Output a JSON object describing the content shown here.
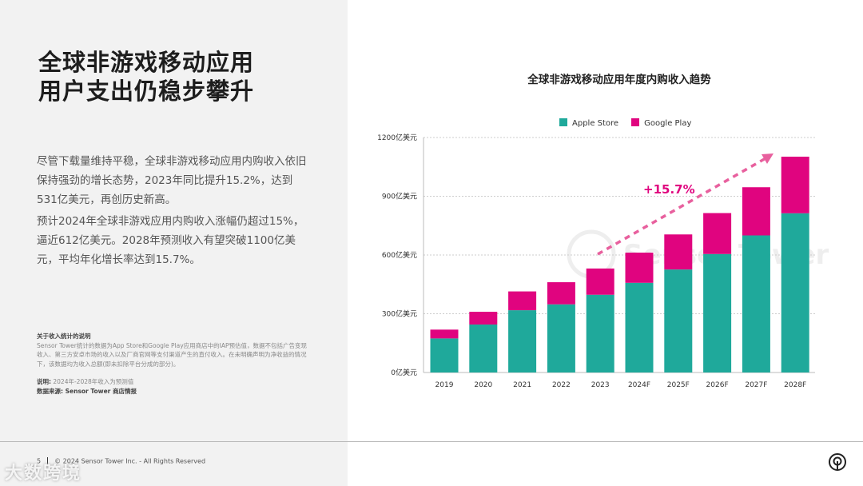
{
  "left": {
    "title_line1": "全球非游戏移动应用",
    "title_line2": "用户支出仍稳步攀升",
    "paragraph1": "尽管下载量维持平稳，全球非游戏移动应用内购收入依旧保持强劲的增长态势，2023年同比提升15.2%，达到531亿美元，再创历史新高。",
    "paragraph2": "预计2024年全球非游戏应用内购收入涨幅仍超过15%，逼近612亿美元。2028年预测收入有望突破1100亿美元，平均年化增长率达到15.7%。",
    "note_heading": "关于收入统计的说明",
    "note_body": "Sensor Tower统计的数据为App Store和Google Play应用商店中的IAP预估值，数据不包括广告变现收入、第三方安卓市场的收入以及厂商官网等支付渠道产生的直付收入。在未明确声明为净收益的情况下，该数据均为收入总额(即未扣除平台分成的部分)。",
    "explain_label": "说明:",
    "explain_text": "2024年-2028年收入为预测值",
    "source": "数据来源: Sensor Tower 商店情报"
  },
  "footer": {
    "page": "5",
    "copyright": "© 2024 Sensor Tower Inc. - All Rights Reserved",
    "watermark": "大数跨境"
  },
  "colors": {
    "apple": "#1fa99b",
    "google": "#e0047f",
    "arrow": "#e8609e"
  },
  "chart_data": {
    "type": "bar",
    "stacked": true,
    "title": "全球非游戏移动应用年度内购收入趋势",
    "categories": [
      "2019",
      "2020",
      "2021",
      "2022",
      "2023",
      "2024F",
      "2025F",
      "2026F",
      "2027F",
      "2028F"
    ],
    "series": [
      {
        "name": "Apple Store",
        "values": [
          174,
          245,
          318,
          348,
          397,
          458,
          526,
          605,
          700,
          813
        ]
      },
      {
        "name": "Google Play",
        "values": [
          45,
          65,
          96,
          113,
          134,
          154,
          179,
          209,
          246,
          289
        ]
      }
    ],
    "ylim": [
      0,
      1200
    ],
    "yticks": [
      "0亿美元",
      "300亿美元",
      "600亿美元",
      "900亿美元",
      "1200亿美元"
    ],
    "ytick_values": [
      0,
      300,
      600,
      900,
      1200
    ],
    "grid": true,
    "legend": "top",
    "annotation": "+15.7%",
    "watermark": "Sensor Tower"
  }
}
